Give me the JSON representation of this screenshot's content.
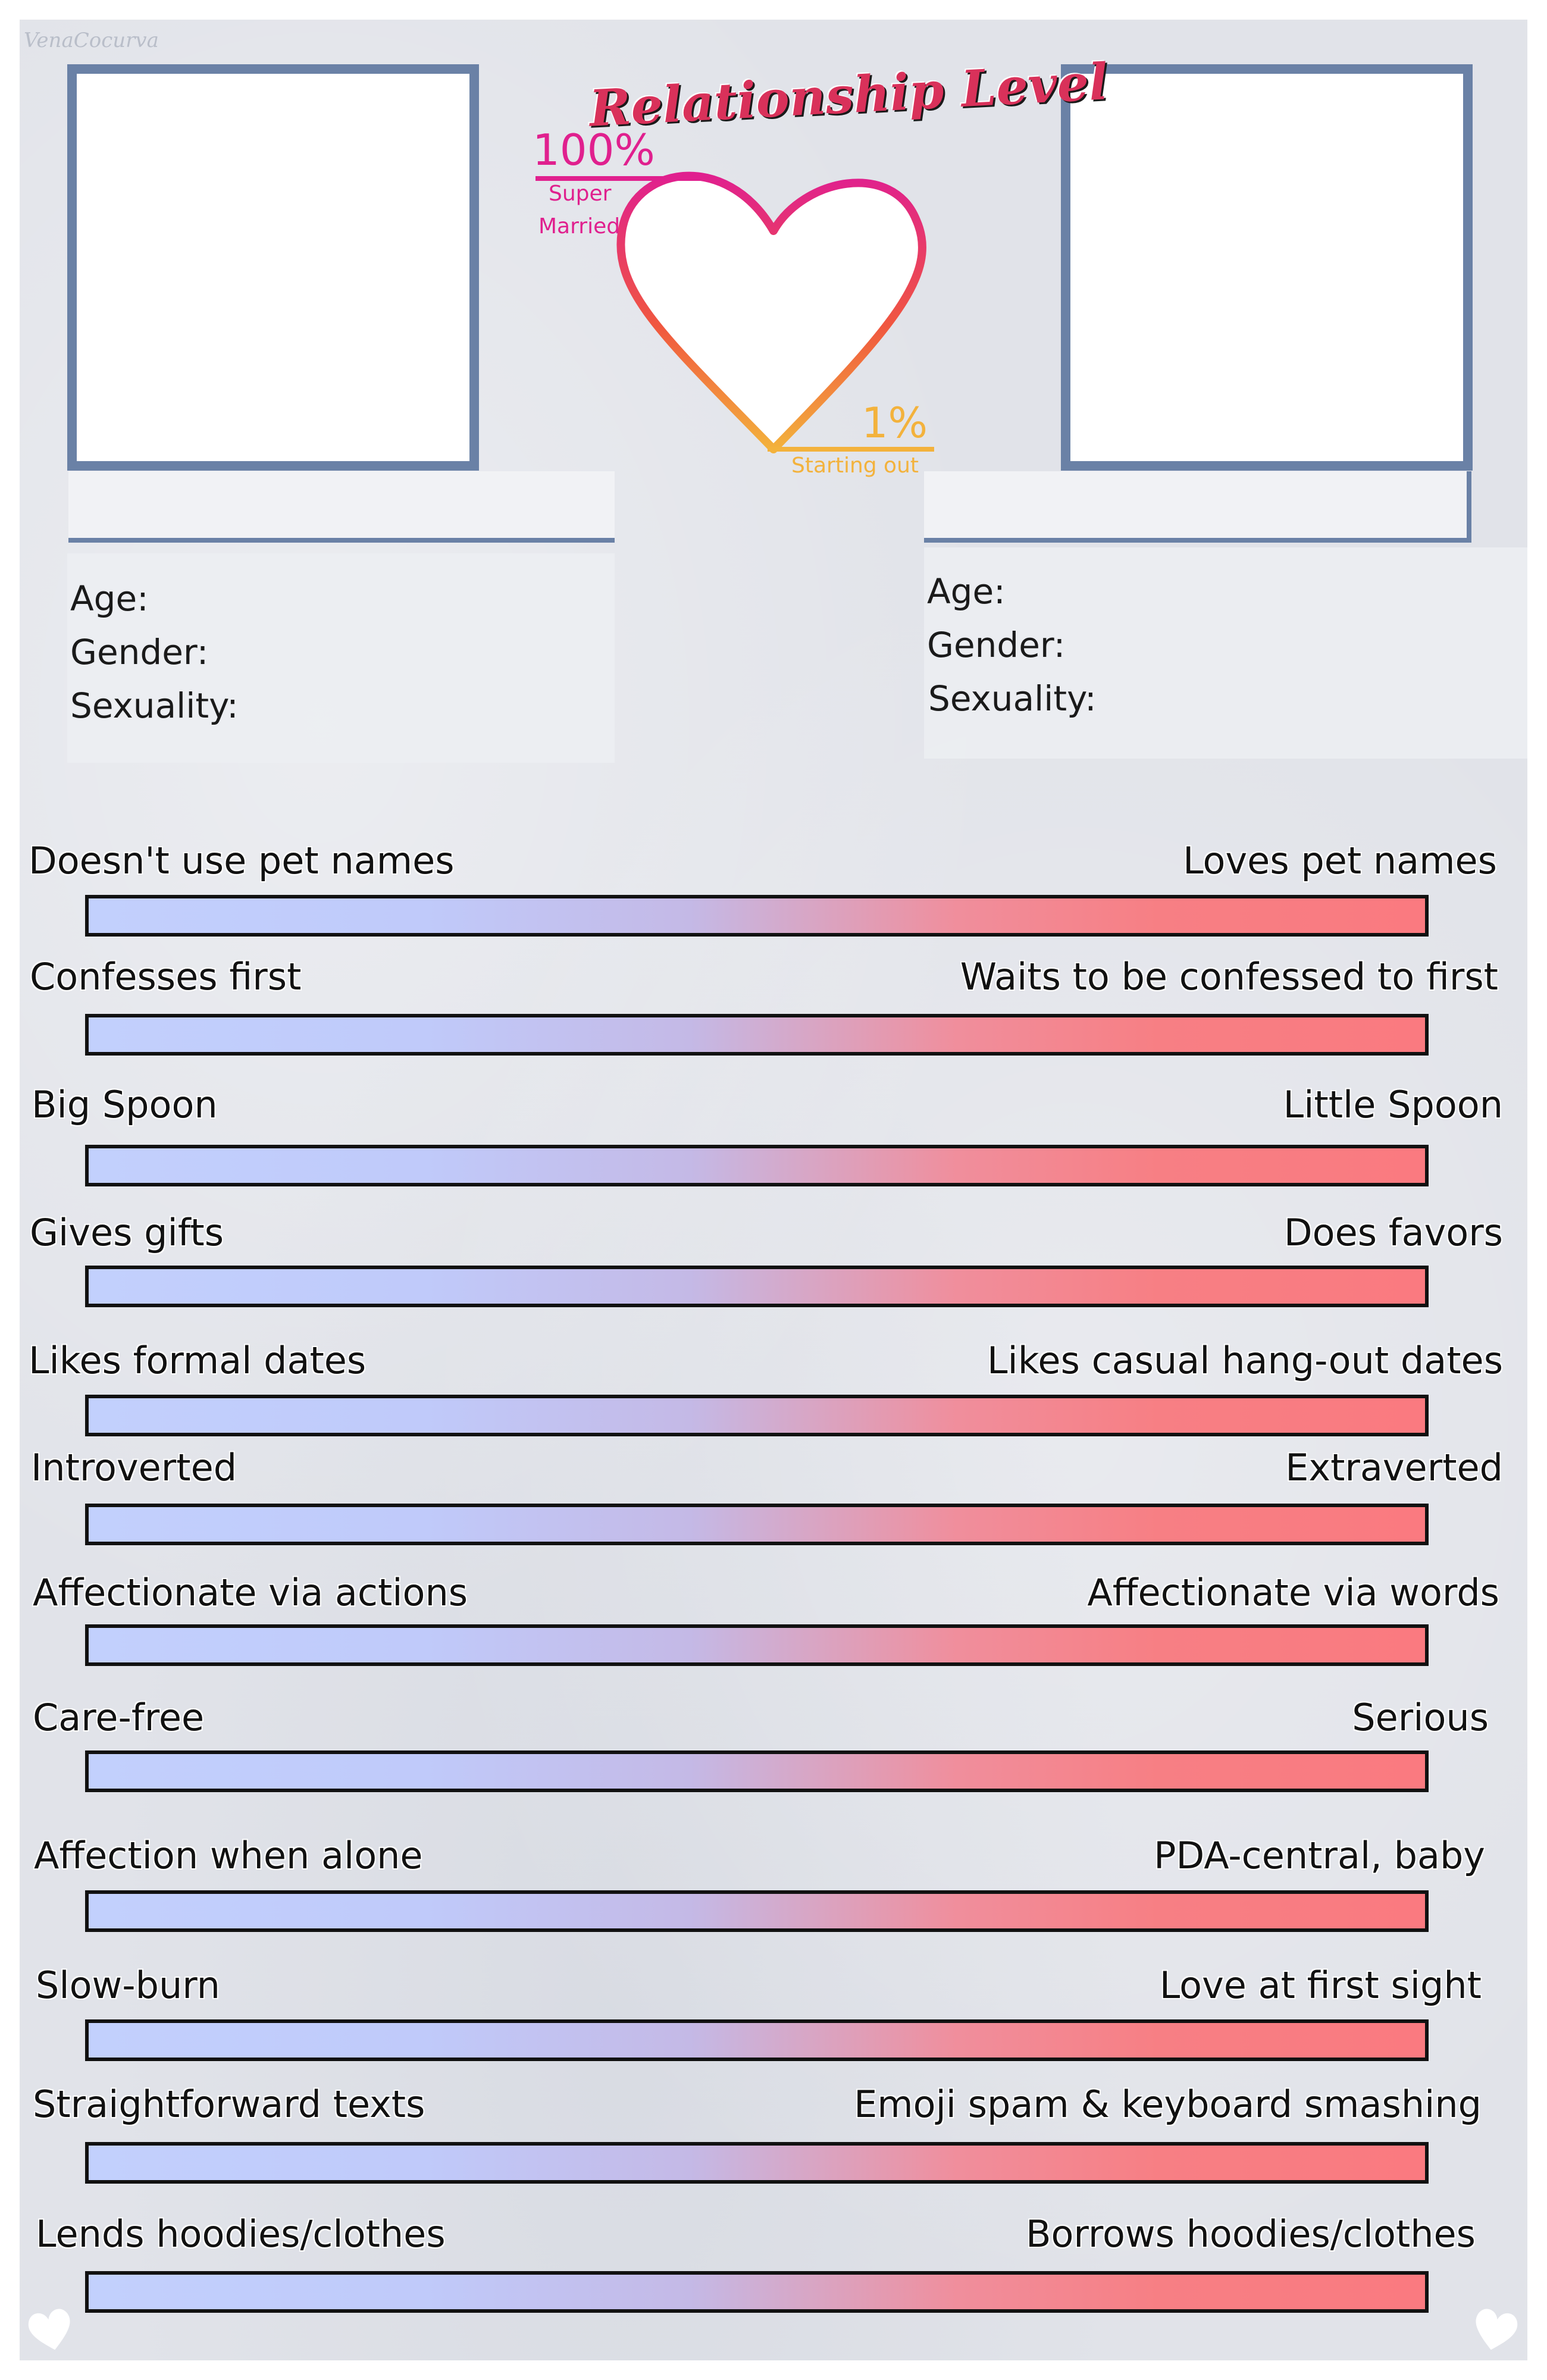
{
  "watermark": "VenaCocurva",
  "header": {
    "title": "Relationship Level",
    "max_pct": "100%",
    "max_label_line1": "Super",
    "max_label_line2": "Married",
    "min_pct": "1%",
    "min_label": "Starting out"
  },
  "left_profile": {
    "name": "",
    "age_label": "Age:",
    "gender_label": "Gender:",
    "sexuality_label": "Sexuality:"
  },
  "right_profile": {
    "name": "",
    "age_label": "Age:",
    "gender_label": "Gender:",
    "sexuality_label": "Sexuality:"
  },
  "scales": [
    {
      "left": "Doesn't use pet names",
      "right": "Loves pet names"
    },
    {
      "left": "Confesses first",
      "right": "Waits to be confessed to first"
    },
    {
      "left": "Big Spoon",
      "right": "Little Spoon"
    },
    {
      "left": "Gives gifts",
      "right": "Does favors"
    },
    {
      "left": "Likes formal dates",
      "right": "Likes casual hang-out dates"
    },
    {
      "left": "Introverted",
      "right": "Extraverted"
    },
    {
      "left": "Affectionate via actions",
      "right": "Affectionate via words"
    },
    {
      "left": "Care-free",
      "right": "Serious"
    },
    {
      "left": "Affection when alone",
      "right": "PDA-central, baby"
    },
    {
      "left": "Slow-burn",
      "right": "Love at first sight"
    },
    {
      "left": "Straightforward texts",
      "right": "Emoji spam & keyboard smashing"
    },
    {
      "left": "Lends hoodies/clothes",
      "right": "Borrows hoodies/clothes"
    }
  ],
  "colors": {
    "frame": "#6a81a6",
    "bar_left": "#c2d0fd",
    "bar_right": "#fa7a80",
    "heart_top": "#e0208e",
    "heart_bottom": "#f3b23c"
  },
  "icons": [
    "heart-outline-icon",
    "heart-corner-icon"
  ]
}
